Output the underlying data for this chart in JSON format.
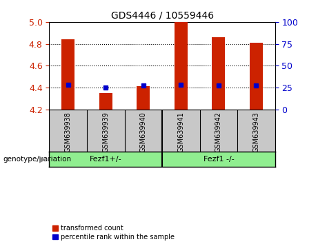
{
  "title": "GDS4446 / 10559446",
  "samples": [
    "GSM639938",
    "GSM639939",
    "GSM639940",
    "GSM639941",
    "GSM639942",
    "GSM639943"
  ],
  "transformed_counts": [
    4.84,
    4.35,
    4.41,
    5.0,
    4.86,
    4.81
  ],
  "percentile_ranks": [
    28,
    25,
    27,
    28,
    27,
    27
  ],
  "ylim": [
    4.2,
    5.0
  ],
  "ylim_right": [
    0,
    100
  ],
  "yticks_left": [
    4.2,
    4.4,
    4.6,
    4.8,
    5.0
  ],
  "yticks_right": [
    0,
    25,
    50,
    75,
    100
  ],
  "bar_color": "#CC2200",
  "dot_color": "#0000CC",
  "bar_width": 0.35,
  "left_tick_color": "#CC2200",
  "right_tick_color": "#0000CC",
  "legend_labels": [
    "transformed count",
    "percentile rank within the sample"
  ],
  "legend_colors": [
    "#CC2200",
    "#0000CC"
  ],
  "genotype_label": "genotype/variation",
  "xlab_bg": "#C8C8C8",
  "grp_bg": "#90EE90",
  "group1_label": "Fezf1+/-",
  "group2_label": "Fezf1 -/-"
}
